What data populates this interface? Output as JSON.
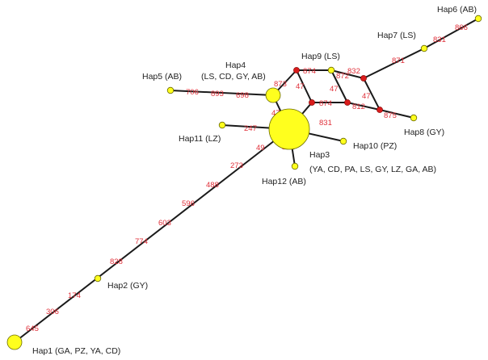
{
  "colors": {
    "haplotype_node": "#ffff1e",
    "median_vector": "#d91c1c",
    "edge": "#1a1a1a",
    "mutation_label": "#e0303a",
    "label_text": "#222222"
  },
  "haplotypes": [
    {
      "id": "hap1",
      "label": "Hap1 (GA, PZ, YA, CD)"
    },
    {
      "id": "hap2",
      "label": "Hap2 (GY)"
    },
    {
      "id": "hap3",
      "label_line1": "Hap3",
      "label_line2": "(YA, CD, PA, LS, GY, LZ, GA, AB)"
    },
    {
      "id": "hap4",
      "label_line1": "Hap4",
      "label_line2": "(LS, CD, GY, AB)"
    },
    {
      "id": "hap5",
      "label": "Hap5 (AB)"
    },
    {
      "id": "hap6",
      "label": "Hap6 (AB)"
    },
    {
      "id": "hap7",
      "label": "Hap7 (LS)"
    },
    {
      "id": "hap8",
      "label": "Hap8 (GY)"
    },
    {
      "id": "hap9",
      "label": "Hap9 (LS)"
    },
    {
      "id": "hap10",
      "label": "Hap10 (PZ)"
    },
    {
      "id": "hap11",
      "label": "Hap11 (LZ)"
    },
    {
      "id": "hap12",
      "label": "Hap12 (AB)"
    }
  ],
  "mutations": {
    "m645": "645",
    "m306": "306",
    "m174": "174",
    "m828": "828",
    "m774": "774",
    "m603": "603",
    "m596": "596",
    "m488": "488",
    "m273": "273",
    "m49": "49",
    "m242": "242",
    "m247": "247",
    "m47a": "47",
    "m873a": "873",
    "m873b": "873",
    "m698": "698",
    "m893": "893",
    "m706": "706",
    "m874a": "874",
    "m47b": "47",
    "m874b": "874",
    "m831a": "831",
    "m872": "872",
    "m47c": "47",
    "m812": "812",
    "m47d": "47",
    "m875": "875",
    "m832": "832",
    "m871": "871",
    "m831b": "831",
    "m866": "866"
  }
}
